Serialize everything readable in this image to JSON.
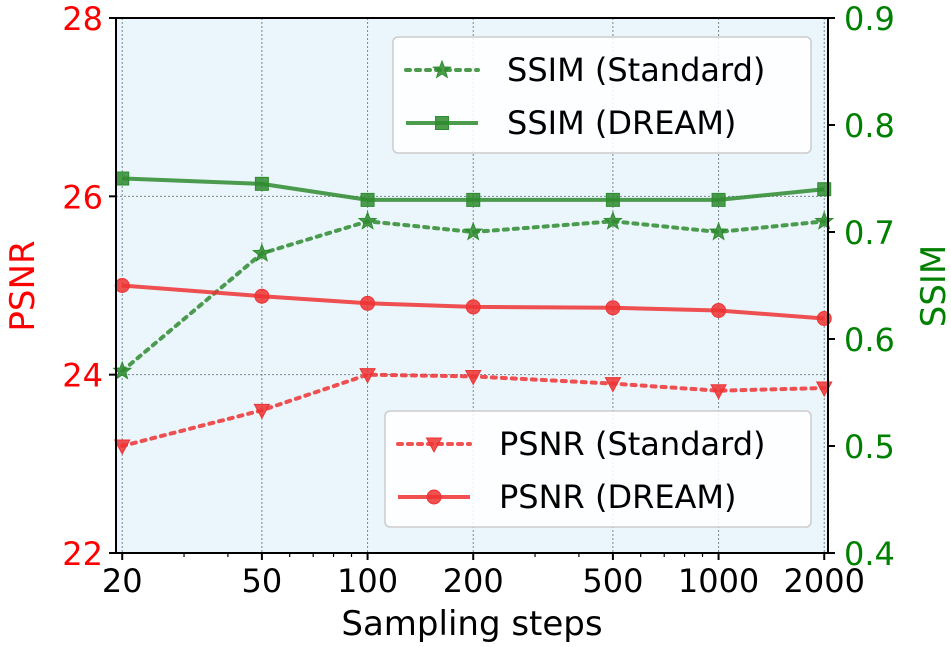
{
  "chart_data": {
    "type": "line",
    "x": [
      20,
      50,
      100,
      200,
      500,
      1000,
      2000
    ],
    "x_tick_labels": [
      "20",
      "50",
      "100",
      "200",
      "500",
      "1000",
      "2000"
    ],
    "xscale": "log",
    "xlim": [
      19.2,
      2050
    ],
    "xlabel": "Sampling steps",
    "ylabel_left": "PSNR",
    "ylabel_right": "SSIM",
    "ylim_left": [
      22,
      28
    ],
    "ylim_right": [
      0.4,
      0.9
    ],
    "y_ticks_left": [
      "22",
      "24",
      "26",
      "28"
    ],
    "y_ticks_right": [
      "0.4",
      "0.5",
      "0.6",
      "0.7",
      "0.8",
      "0.9"
    ],
    "grid": true,
    "background_color": "#eaf6fc",
    "colors": {
      "psnr": "#ff0000",
      "ssim": "#008000"
    },
    "series": [
      {
        "name": "SSIM (Standard)",
        "axis": "right",
        "style": "dotted",
        "marker": "star",
        "color": "#2e8b2e",
        "values": [
          0.57,
          0.68,
          0.71,
          0.7,
          0.71,
          0.7,
          0.71
        ]
      },
      {
        "name": "SSIM (DREAM)",
        "axis": "right",
        "style": "solid",
        "marker": "square",
        "color": "#2e8b2e",
        "values": [
          0.75,
          0.745,
          0.73,
          0.73,
          0.73,
          0.73,
          0.74
        ]
      },
      {
        "name": "PSNR (Standard)",
        "axis": "left",
        "style": "dotted",
        "marker": "triangle-down",
        "color": "#ee3333",
        "values": [
          23.2,
          23.6,
          24.0,
          23.98,
          23.9,
          23.82,
          23.85
        ]
      },
      {
        "name": "PSNR (DREAM)",
        "axis": "left",
        "style": "solid",
        "marker": "circle",
        "color": "#ee3333",
        "values": [
          25.0,
          24.88,
          24.8,
          24.76,
          24.75,
          24.72,
          24.63
        ]
      }
    ],
    "legends": [
      {
        "placement": "top-right",
        "entries": [
          "SSIM (Standard)",
          "SSIM (DREAM)"
        ]
      },
      {
        "placement": "bottom-right",
        "entries": [
          "PSNR (Standard)",
          "PSNR (DREAM)"
        ]
      }
    ]
  }
}
